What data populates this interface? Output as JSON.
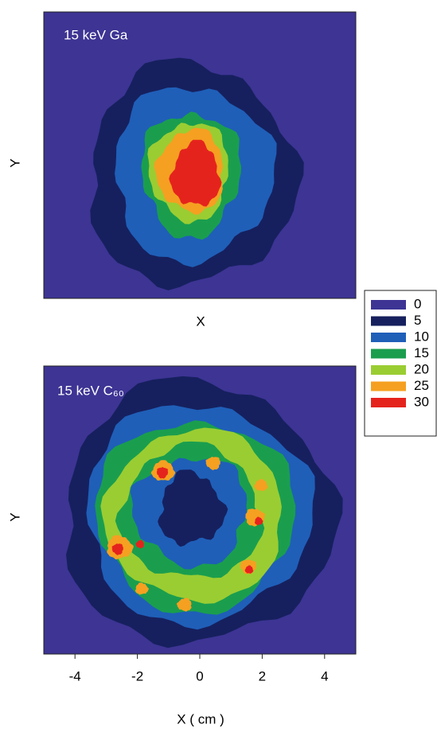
{
  "chart_data": [
    {
      "type": "contour",
      "title": "15 keV Ga",
      "xlabel": "X",
      "ylabel": "Y"
    },
    {
      "type": "contour",
      "title": "15 keV C₆₀",
      "xlabel": "X ( cm )",
      "ylabel": "Y",
      "xlim": [
        -5,
        5
      ],
      "xticks": [
        -4,
        -2,
        0,
        2,
        4
      ]
    }
  ],
  "legend": {
    "levels": [
      0,
      5,
      10,
      15,
      20,
      25,
      30
    ],
    "colors": [
      "#3d3494",
      "#16205e",
      "#1f5fb8",
      "#1a9e4e",
      "#9acd32",
      "#f5a021",
      "#e5231d"
    ]
  }
}
